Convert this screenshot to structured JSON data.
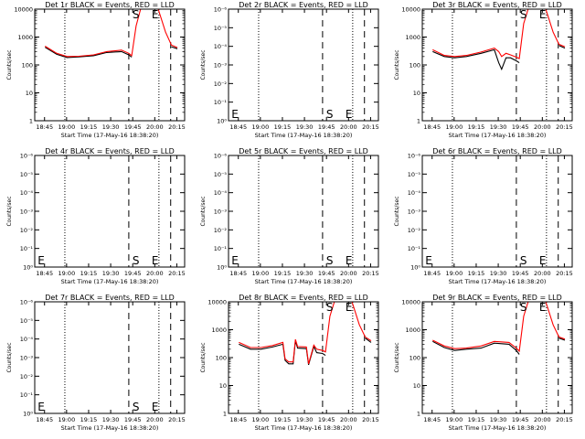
{
  "colors": {
    "events": "#000000",
    "lld": "#ff0000",
    "frame": "#000000",
    "background": "#ffffff"
  },
  "chart_data": [
    {
      "type": "line",
      "title": "Det 1r BLACK = Events, RED = LLD",
      "xlabel": "Start Time (17-May-16 18:38:20)",
      "ylabel": "Counts/sec",
      "x_tick_labels": [
        "18:45",
        "19:00",
        "19:15",
        "19:30",
        "19:45",
        "20:00",
        "20:15"
      ],
      "y_tick_labels": [
        "1",
        "10",
        "100",
        "1000",
        "10000"
      ],
      "y_scale": "log",
      "ylim": [
        1,
        10000
      ],
      "x_minutes": [
        7,
        15,
        22,
        30,
        40,
        49,
        59,
        64,
        66,
        69,
        72,
        74,
        78,
        82,
        84,
        89,
        93,
        97
      ],
      "series": [
        {
          "name": "Events",
          "values": [
            430,
            240,
            185,
            195,
            215,
            280,
            300,
            230,
            190,
            null,
            null,
            null,
            null,
            null,
            null,
            null,
            450,
            380
          ]
        },
        {
          "name": "LLD",
          "values": [
            470,
            260,
            200,
            205,
            230,
            300,
            340,
            260,
            215,
            2500,
            10000,
            10000,
            10000,
            10000,
            10000,
            1500,
            520,
            420
          ]
        }
      ],
      "markers": {
        "S": "S",
        "E": "E"
      },
      "label_row": [
        "S",
        "E"
      ]
    },
    {
      "type": "line",
      "title": "Det 2r BLACK = Events, RED = LLD",
      "xlabel": "Start Time (17-May-16 18:38:20)",
      "ylabel": "Counts/sec",
      "x_tick_labels": [
        "18:45",
        "19:00",
        "19:15",
        "19:30",
        "19:45",
        "20:00",
        "20:15"
      ],
      "y_tick_labels": [
        "10⁰",
        "10⁻¹",
        "10⁻²",
        "10⁻³",
        "10⁻⁴",
        "10⁻⁵",
        "10⁻⁶"
      ],
      "y_scale": "log",
      "x_minutes": [],
      "series": [],
      "markers": {
        "S": "S",
        "E": "E"
      },
      "label_row": [
        "E",
        "S",
        "E"
      ]
    },
    {
      "type": "line",
      "title": "Det 3r BLACK = Events, RED = LLD",
      "xlabel": "Start Time (17-May-16 18:38:20)",
      "ylabel": "Counts/sec",
      "x_tick_labels": [
        "18:45",
        "19:00",
        "19:15",
        "19:30",
        "19:45",
        "20:00",
        "20:15"
      ],
      "y_tick_labels": [
        "1",
        "10",
        "100",
        "1000",
        "10000"
      ],
      "y_scale": "log",
      "ylim": [
        1,
        10000
      ],
      "x_minutes": [
        7,
        15,
        22,
        30,
        40,
        49,
        52,
        54,
        57,
        60,
        64,
        66,
        69,
        72,
        74,
        78,
        82,
        84,
        89,
        93,
        97
      ],
      "series": [
        {
          "name": "Events",
          "values": [
            300,
            200,
            180,
            200,
            260,
            350,
            120,
            70,
            180,
            180,
            140,
            120,
            null,
            null,
            null,
            null,
            null,
            null,
            null,
            500,
            400
          ]
        },
        {
          "name": "LLD",
          "values": [
            350,
            220,
            200,
            220,
            290,
            400,
            300,
            200,
            260,
            230,
            190,
            170,
            3000,
            10000,
            10000,
            10000,
            10000,
            10000,
            1500,
            550,
            450
          ]
        }
      ],
      "markers": {
        "S": "S",
        "E": "E"
      },
      "label_row": [
        "S",
        "E"
      ]
    },
    {
      "type": "line",
      "title": "Det 4r BLACK = Events, RED = LLD",
      "xlabel": "Start Time (17-May-16 18:38:20)",
      "ylabel": "Counts/sec",
      "x_tick_labels": [
        "18:45",
        "19:00",
        "19:15",
        "19:30",
        "19:45",
        "20:00",
        "20:15"
      ],
      "y_tick_labels": [
        "10⁰",
        "10⁻¹",
        "10⁻²",
        "10⁻³",
        "10⁻⁴",
        "10⁻⁵",
        "10⁻⁶"
      ],
      "y_scale": "log",
      "x_minutes": [],
      "series": [],
      "markers": {
        "S": "S",
        "E": "E"
      },
      "label_row": [
        "E",
        "S",
        "E"
      ]
    },
    {
      "type": "line",
      "title": "Det 5r BLACK = Events, RED = LLD",
      "xlabel": "Start Time (17-May-16 18:38:20)",
      "ylabel": "Counts/sec",
      "x_tick_labels": [
        "18:45",
        "19:00",
        "19:15",
        "19:30",
        "19:45",
        "20:00",
        "20:15"
      ],
      "y_tick_labels": [
        "10⁰",
        "10⁻¹",
        "10⁻²",
        "10⁻³",
        "10⁻⁴",
        "10⁻⁵",
        "10⁻⁶"
      ],
      "y_scale": "log",
      "x_minutes": [],
      "series": [],
      "markers": {
        "S": "S",
        "E": "E"
      },
      "label_row": [
        "E",
        "S",
        "E"
      ]
    },
    {
      "type": "line",
      "title": "Det 6r BLACK = Events, RED = LLD",
      "xlabel": "Start Time (17-May-16 18:38:20)",
      "ylabel": "Counts/sec",
      "x_tick_labels": [
        "18:45",
        "19:00",
        "19:15",
        "19:30",
        "19:45",
        "20:00",
        "20:15"
      ],
      "y_tick_labels": [
        "10⁰",
        "10⁻¹",
        "10⁻²",
        "10⁻³",
        "10⁻⁴",
        "10⁻⁵",
        "10⁻⁶"
      ],
      "y_scale": "log",
      "x_minutes": [],
      "series": [],
      "markers": {
        "S": "S",
        "E": "E"
      },
      "label_row": [
        "E",
        "S",
        "E"
      ]
    },
    {
      "type": "line",
      "title": "Det 7r BLACK = Events, RED = LLD",
      "xlabel": "Start Time (17-May-16 18:38:20)",
      "ylabel": "Counts/sec",
      "x_tick_labels": [
        "18:45",
        "19:00",
        "19:15",
        "19:30",
        "19:45",
        "20:00",
        "20:15"
      ],
      "y_tick_labels": [
        "10⁰",
        "10⁻¹",
        "10⁻²",
        "10⁻³",
        "10⁻⁴",
        "10⁻⁵",
        "10⁻⁶"
      ],
      "y_scale": "log",
      "x_minutes": [],
      "series": [],
      "markers": {
        "S": "S",
        "E": "E"
      },
      "label_row": [
        "E",
        "S",
        "E"
      ]
    },
    {
      "type": "line",
      "title": "Det 8r BLACK = Events, RED = LLD",
      "xlabel": "Start Time (17-May-16 18:38:20)",
      "ylabel": "Counts/sec",
      "x_tick_labels": [
        "18:45",
        "19:00",
        "19:15",
        "19:30",
        "19:45",
        "20:00",
        "20:15"
      ],
      "y_tick_labels": [
        "1",
        "10",
        "100",
        "1000",
        "10000"
      ],
      "y_scale": "log",
      "ylim": [
        1,
        10000
      ],
      "x_minutes": [
        7,
        15,
        22,
        30,
        37,
        38.5,
        41,
        44,
        45.5,
        47,
        53,
        54.5,
        58,
        60,
        64,
        66,
        69,
        72,
        74,
        78,
        82,
        84,
        89,
        93,
        97
      ],
      "series": [
        {
          "name": "Events",
          "values": [
            300,
            200,
            200,
            240,
            300,
            80,
            60,
            60,
            400,
            220,
            210,
            55,
            250,
            150,
            140,
            120,
            null,
            null,
            null,
            null,
            null,
            null,
            null,
            500,
            350
          ]
        },
        {
          "name": "LLD",
          "values": [
            350,
            230,
            230,
            270,
            350,
            90,
            70,
            70,
            450,
            250,
            240,
            60,
            280,
            200,
            180,
            160,
            3000,
            10000,
            10000,
            10000,
            10000,
            10000,
            1500,
            550,
            400
          ]
        }
      ],
      "markers": {
        "S": "S",
        "E": "E"
      },
      "label_row": [
        "S",
        "E"
      ]
    },
    {
      "type": "line",
      "title": "Det 9r BLACK = Events, RED = LLD",
      "xlabel": "Start Time (17-May-16 18:38:20)",
      "ylabel": "Counts/sec",
      "x_tick_labels": [
        "18:45",
        "19:00",
        "19:15",
        "19:30",
        "19:45",
        "20:00",
        "20:15"
      ],
      "y_tick_labels": [
        "1",
        "10",
        "100",
        "1000",
        "10000"
      ],
      "y_scale": "log",
      "ylim": [
        1,
        10000
      ],
      "x_minutes": [
        7,
        15,
        22,
        30,
        40,
        49,
        59,
        64,
        66,
        69,
        72,
        74,
        78,
        82,
        84,
        89,
        93,
        97
      ],
      "series": [
        {
          "name": "Events",
          "values": [
            380,
            230,
            180,
            200,
            220,
            330,
            300,
            180,
            130,
            null,
            null,
            null,
            null,
            null,
            null,
            null,
            500,
            420
          ]
        },
        {
          "name": "LLD",
          "values": [
            420,
            260,
            210,
            220,
            260,
            380,
            350,
            220,
            170,
            3000,
            10000,
            10000,
            10000,
            10000,
            10000,
            1500,
            550,
            460
          ]
        }
      ],
      "markers": {
        "S": "S",
        "E": "E"
      },
      "label_row": [
        "S",
        "E"
      ]
    }
  ]
}
